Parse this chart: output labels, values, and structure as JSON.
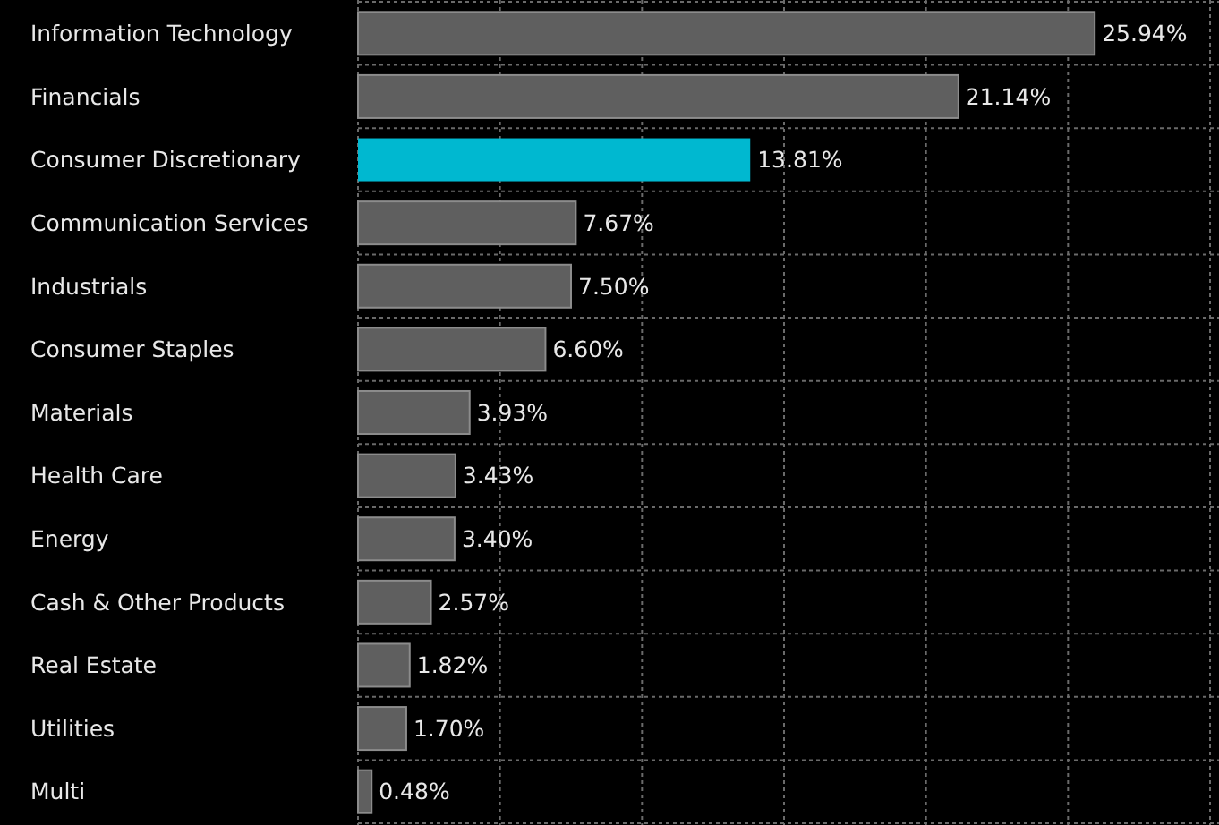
{
  "chart_data": {
    "type": "bar",
    "orientation": "horizontal",
    "categories": [
      "Information Technology",
      "Financials",
      "Consumer Discretionary",
      "Communication Services",
      "Industrials",
      "Consumer Staples",
      "Materials",
      "Health Care",
      "Energy",
      "Cash & Other Products",
      "Real Estate",
      "Utilities",
      "Multi"
    ],
    "values": [
      25.94,
      21.14,
      13.81,
      7.67,
      7.5,
      6.6,
      3.93,
      3.43,
      3.4,
      2.57,
      1.82,
      1.7,
      0.48
    ],
    "value_labels": [
      "25.94%",
      "21.14%",
      "13.81%",
      "7.67%",
      "7.50%",
      "6.60%",
      "3.93%",
      "3.43%",
      "3.40%",
      "2.57%",
      "1.82%",
      "1.70%",
      "0.48%"
    ],
    "colors": [
      "#5f5f5f",
      "#5f5f5f",
      "#00b8d0",
      "#5f5f5f",
      "#5f5f5f",
      "#5f5f5f",
      "#5f5f5f",
      "#5f5f5f",
      "#5f5f5f",
      "#5f5f5f",
      "#5f5f5f",
      "#5f5f5f",
      "#5f5f5f"
    ],
    "xlim": [
      0,
      30
    ],
    "xticks": [
      {
        "value": 0,
        "label": null
      },
      {
        "value": 5,
        "label": null
      },
      {
        "value": 10,
        "label": null
      },
      {
        "value": 15,
        "label": null
      },
      {
        "value": 20,
        "label": null
      },
      {
        "value": 25,
        "label": null
      },
      {
        "value": 30,
        "label": null
      }
    ],
    "grid": true,
    "tick_labels": "y"
  }
}
